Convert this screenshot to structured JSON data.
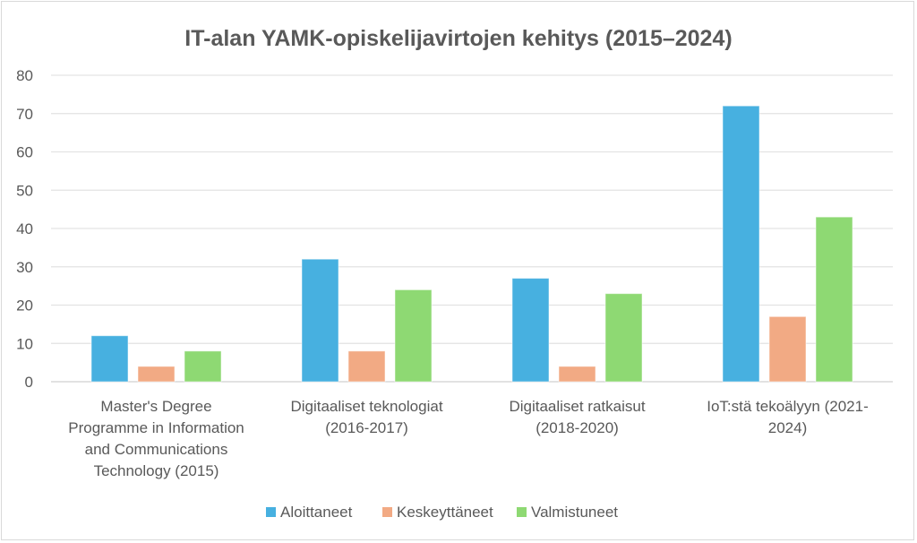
{
  "chart_data": {
    "type": "bar",
    "title": "IT-alan YAMK-opiskelijavirtojen kehitys (2015–2024)",
    "xlabel": "",
    "ylabel": "",
    "ylim": [
      0,
      80
    ],
    "yticks": [
      0,
      10,
      20,
      30,
      40,
      50,
      60,
      70,
      80
    ],
    "grid": true,
    "legend_position": "bottom",
    "categories": [
      [
        "Master's Degree",
        "Programme in Information",
        "and Communications",
        "Technology (2015)"
      ],
      [
        "Digitaaliset teknologiat",
        "(2016-2017)"
      ],
      [
        "Digitaaliset ratkaisut",
        "(2018-2020)"
      ],
      [
        "IoT:stä tekoälyyn (2021-",
        "2024)"
      ]
    ],
    "series": [
      {
        "name": "Aloittaneet",
        "color": "#47b0e0",
        "values": [
          12,
          32,
          27,
          72
        ]
      },
      {
        "name": "Keskeyttäneet",
        "color": "#f2aa84",
        "values": [
          4,
          8,
          4,
          17
        ]
      },
      {
        "name": "Valmistuneet",
        "color": "#8ed973",
        "values": [
          8,
          24,
          23,
          43
        ]
      }
    ]
  }
}
